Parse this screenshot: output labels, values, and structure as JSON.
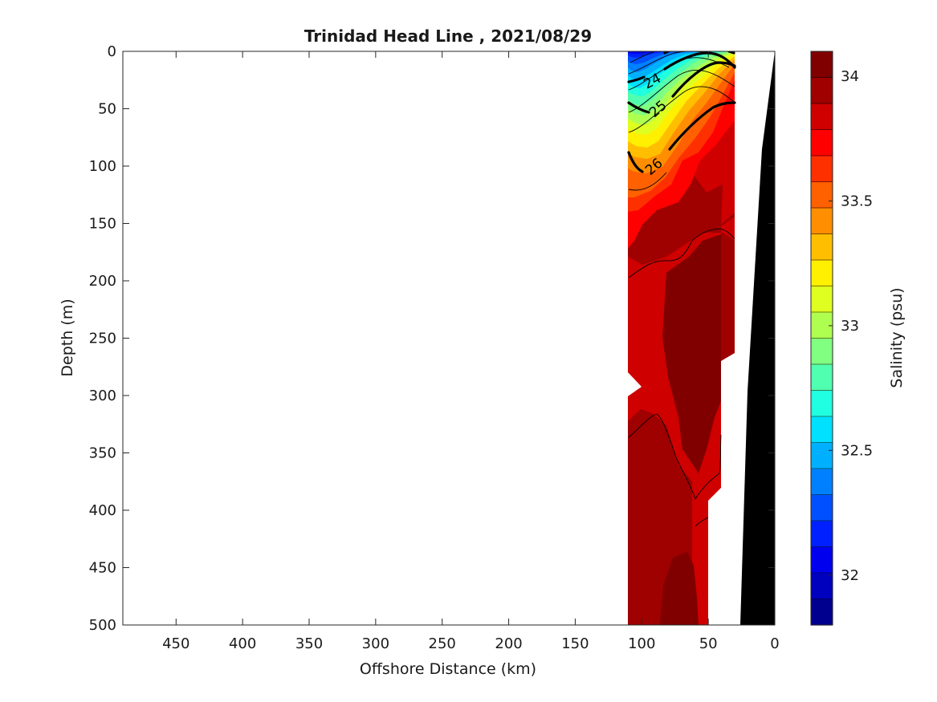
{
  "chart_data": {
    "type": "contour",
    "title": "Trinidad Head Line , 2021/08/29",
    "xlabel": "Offshore Distance (km)",
    "ylabel": "Depth (m)",
    "colorbar_label": "Salinity (psu)",
    "xlim": [
      490,
      0
    ],
    "ylim": [
      500,
      0
    ],
    "x_ticks": [
      450,
      400,
      350,
      300,
      250,
      200,
      150,
      100,
      50,
      0
    ],
    "y_ticks": [
      0,
      50,
      100,
      150,
      200,
      250,
      300,
      350,
      400,
      450,
      500
    ],
    "colorbar_range": [
      31.8,
      34.1
    ],
    "colorbar_ticks": [
      32,
      32.5,
      33,
      33.5,
      34
    ],
    "colorbar_colors": [
      "#00008f",
      "#0000bf",
      "#0000ef",
      "#0020ff",
      "#0050ff",
      "#0080ff",
      "#00b0ff",
      "#00e0ff",
      "#20ffdf",
      "#50ffaf",
      "#80ff80",
      "#afff50",
      "#dfff20",
      "#ffef00",
      "#ffbf00",
      "#ff8f00",
      "#ff6000",
      "#ff3000",
      "#ff0000",
      "#cf0000",
      "#9f0000",
      "#800000"
    ],
    "density_contour_labels": [
      "24",
      "25",
      "26"
    ],
    "section_x_range_km": [
      110,
      30
    ],
    "colormap": "jet",
    "bathymetry_color": "#000000"
  }
}
